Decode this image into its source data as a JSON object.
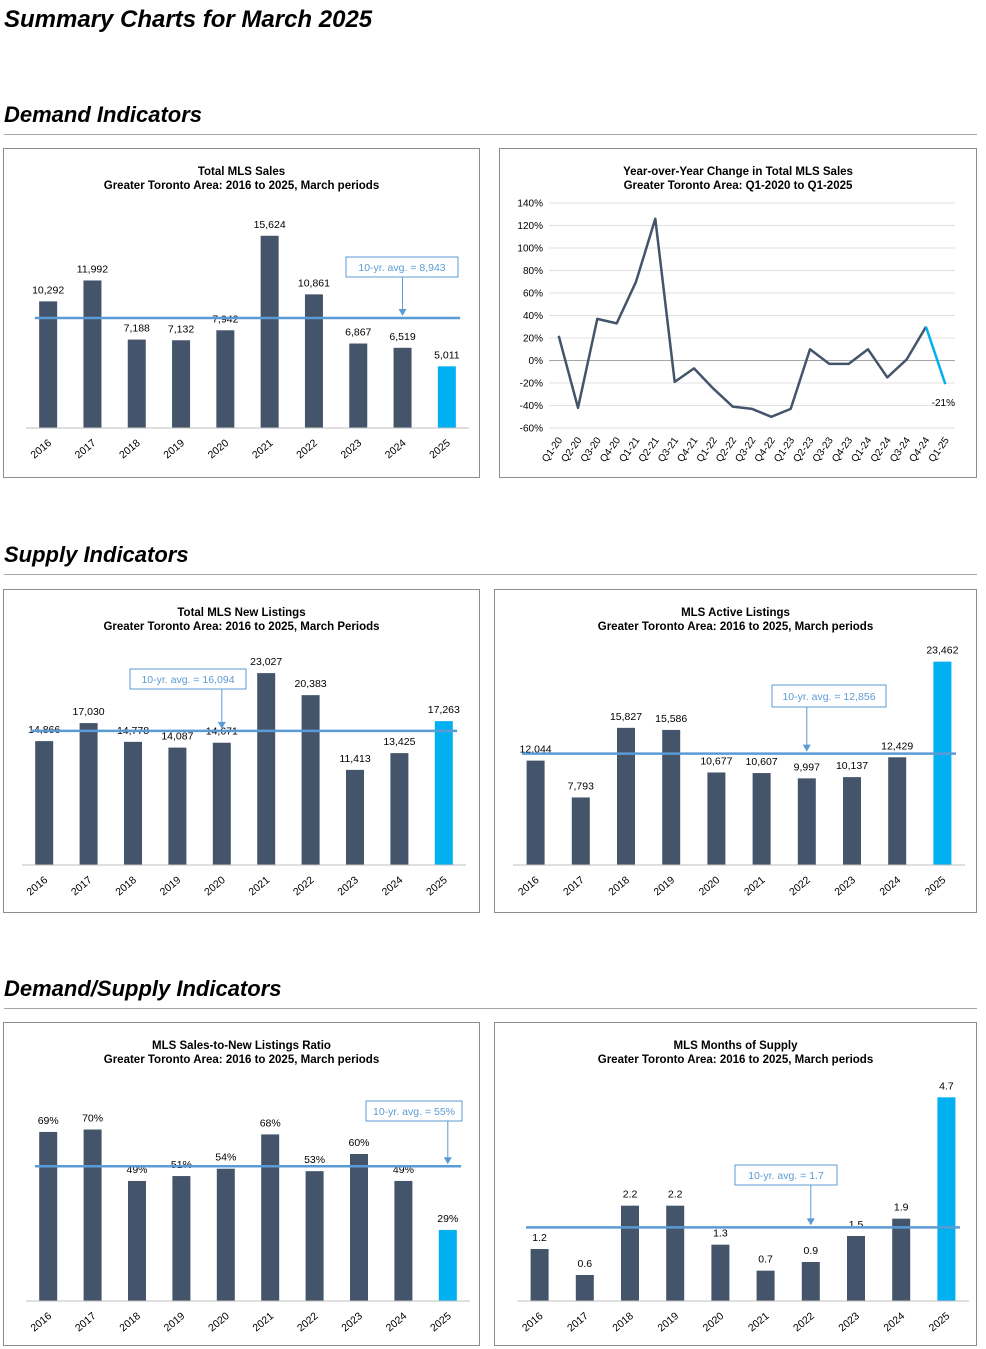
{
  "page_title": "Summary Charts for March 2025",
  "sections": [
    {
      "title": "Demand Indicators"
    },
    {
      "title": "Supply Indicators"
    },
    {
      "title": "Demand/Supply Indicators"
    }
  ],
  "colors": {
    "bar": "#44546a",
    "highlight": "#00b0f0",
    "avg_line": "#5b9bd5",
    "callout_text": "#5b9bd5"
  },
  "chart_data": [
    {
      "id": "total-sales",
      "type": "bar",
      "title": "Total MLS Sales",
      "subtitle": "Greater Toronto Area: 2016 to 2025, March periods",
      "categories": [
        "2016",
        "2017",
        "2018",
        "2019",
        "2020",
        "2021",
        "2022",
        "2023",
        "2024",
        "2025"
      ],
      "values": [
        10292,
        11992,
        7188,
        7132,
        7942,
        15624,
        10861,
        6867,
        6519,
        5011
      ],
      "labels": [
        "10,292",
        "11,992",
        "7,188",
        "7,132",
        "7,942",
        "15,624",
        "10,861",
        "6,867",
        "6,519",
        "5,011"
      ],
      "highlight_last": true,
      "average": 8943,
      "average_label": "10-yr. avg. = 8,943",
      "ylim": [
        0,
        16500
      ]
    },
    {
      "id": "yoy-sales",
      "type": "line",
      "title": "Year-over-Year Change in Total MLS Sales",
      "subtitle": "Greater Toronto Area: Q1-2020 to Q1-2025",
      "categories": [
        "Q1-20",
        "Q2-20",
        "Q3-20",
        "Q4-20",
        "Q1-21",
        "Q2-21",
        "Q3-21",
        "Q4-21",
        "Q1-22",
        "Q2-22",
        "Q3-22",
        "Q4-22",
        "Q1-23",
        "Q2-23",
        "Q3-23",
        "Q4-23",
        "Q1-24",
        "Q2-24",
        "Q3-24",
        "Q4-24",
        "Q1-25"
      ],
      "values": [
        22,
        -42,
        37,
        33,
        70,
        126,
        -19,
        -7,
        -25,
        -41,
        -43,
        -50,
        -43,
        10,
        -3,
        -3,
        10,
        -15,
        1,
        30,
        -21
      ],
      "y_ticks": [
        "140%",
        "120%",
        "100%",
        "80%",
        "60%",
        "40%",
        "20%",
        "0%",
        "-20%",
        "-40%",
        "-60%"
      ],
      "ylim": [
        -60,
        140
      ],
      "last_label": "-21%"
    },
    {
      "id": "new-listings",
      "type": "bar",
      "title": "Total MLS New Listings",
      "subtitle": "Greater Toronto Area: 2016 to 2025, March Periods",
      "categories": [
        "2016",
        "2017",
        "2018",
        "2019",
        "2020",
        "2021",
        "2022",
        "2023",
        "2024",
        "2025"
      ],
      "values": [
        14866,
        17030,
        14778,
        14087,
        14671,
        23027,
        20383,
        11413,
        13425,
        17263
      ],
      "labels": [
        "14,866",
        "17,030",
        "14,778",
        "14,087",
        "14,671",
        "23,027",
        "20,383",
        "11,413",
        "13,425",
        "17,263"
      ],
      "highlight_last": true,
      "average": 16094,
      "average_label": "10-yr. avg. = 16,094",
      "ylim": [
        0,
        24000
      ]
    },
    {
      "id": "active-listings",
      "type": "bar",
      "title": "MLS Active Listings",
      "subtitle": "Greater Toronto Area: 2016 to 2025, March periods",
      "categories": [
        "2016",
        "2017",
        "2018",
        "2019",
        "2020",
        "2021",
        "2022",
        "2023",
        "2024",
        "2025"
      ],
      "values": [
        12044,
        7793,
        15827,
        15586,
        10677,
        10607,
        9997,
        10137,
        12429,
        23462
      ],
      "labels": [
        "12,044",
        "7,793",
        "15,827",
        "15,586",
        "10,677",
        "10,607",
        "9,997",
        "10,137",
        "12,429",
        "23,462"
      ],
      "highlight_last": true,
      "average": 12856,
      "average_label": "10-yr. avg. = 12,856",
      "ylim": [
        0,
        24000
      ]
    },
    {
      "id": "snlr",
      "type": "bar",
      "title": "MLS Sales-to-New Listings Ratio",
      "subtitle": "Greater Toronto Area: 2016 to 2025, March periods",
      "categories": [
        "2016",
        "2017",
        "2018",
        "2019",
        "2020",
        "2021",
        "2022",
        "2023",
        "2024",
        "2025"
      ],
      "values": [
        69,
        70,
        49,
        51,
        54,
        68,
        53,
        60,
        49,
        29
      ],
      "labels": [
        "69%",
        "70%",
        "49%",
        "51%",
        "54%",
        "68%",
        "53%",
        "60%",
        "49%",
        "29%"
      ],
      "highlight_last": true,
      "average": 55,
      "average_label": "10-yr. avg. = 55%",
      "ylim": [
        0,
        80
      ]
    },
    {
      "id": "months-supply",
      "type": "bar",
      "title": "MLS Months of Supply",
      "subtitle": "Greater Toronto Area: 2016 to 2025, March periods",
      "categories": [
        "2016",
        "2017",
        "2018",
        "2019",
        "2020",
        "2021",
        "2022",
        "2023",
        "2024",
        "2025"
      ],
      "values": [
        1.2,
        0.6,
        2.2,
        2.2,
        1.3,
        0.7,
        0.9,
        1.5,
        1.9,
        4.7
      ],
      "labels": [
        "1.2",
        "0.6",
        "2.2",
        "2.2",
        "1.3",
        "0.7",
        "0.9",
        "1.5",
        "1.9",
        "4.7"
      ],
      "highlight_last": true,
      "average": 1.7,
      "average_label": "10-yr. avg. = 1.7",
      "ylim": [
        0,
        4.8
      ]
    }
  ]
}
